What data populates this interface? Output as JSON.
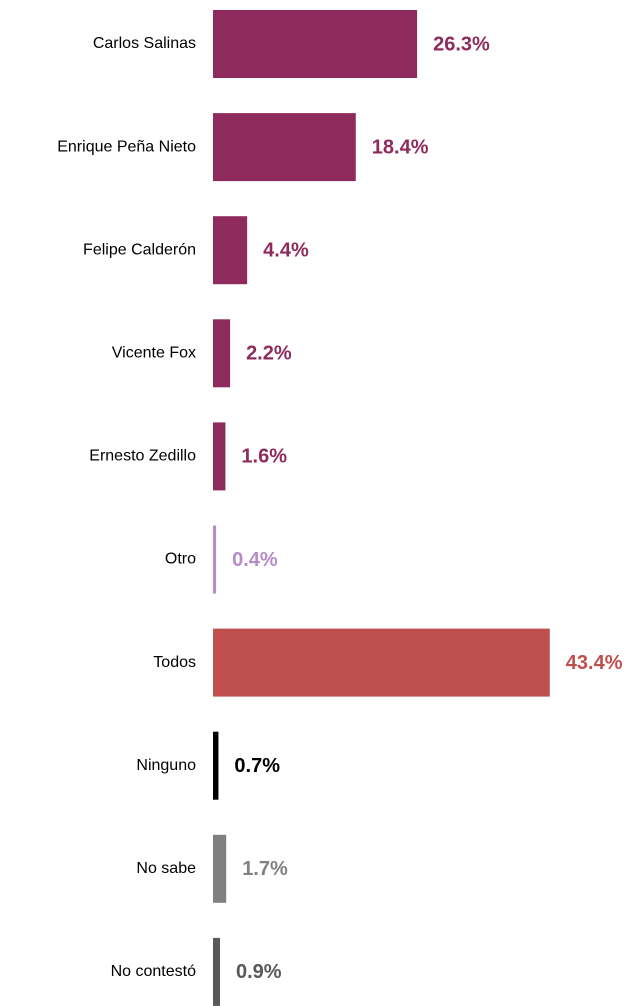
{
  "chart_data": {
    "type": "bar",
    "orientation": "horizontal",
    "categories": [
      "Carlos Salinas",
      "Enrique Peña Nieto",
      "Felipe Calderón",
      "Vicente Fox",
      "Ernesto Zedillo",
      "Otro",
      "Todos",
      "Ninguno",
      "No sabe",
      "No contestó"
    ],
    "values": [
      26.3,
      18.4,
      4.4,
      2.2,
      1.6,
      0.4,
      43.4,
      0.7,
      1.7,
      0.9
    ],
    "value_labels": [
      "26.3%",
      "18.4%",
      "4.4%",
      "2.2%",
      "1.6%",
      "0.4%",
      "43.4%",
      "0.7%",
      "1.7%",
      "0.9%"
    ],
    "colors": [
      "#8e2b5c",
      "#8e2b5c",
      "#8e2b5c",
      "#8e2b5c",
      "#8e2b5c",
      "#b48cc8",
      "#c0504d",
      "#000000",
      "#808080",
      "#595959"
    ]
  }
}
